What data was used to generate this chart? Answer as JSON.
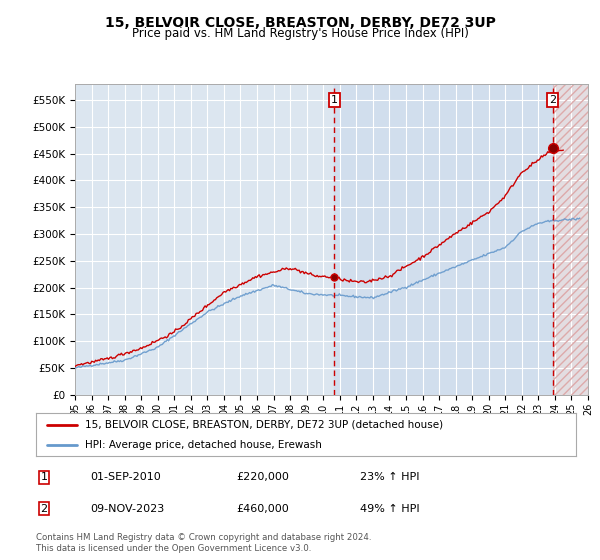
{
  "title": "15, BELVOIR CLOSE, BREASTON, DERBY, DE72 3UP",
  "subtitle": "Price paid vs. HM Land Registry's House Price Index (HPI)",
  "ylim": [
    0,
    580000
  ],
  "yticks": [
    0,
    50000,
    100000,
    150000,
    200000,
    250000,
    300000,
    350000,
    400000,
    450000,
    500000,
    550000
  ],
  "ytick_labels": [
    "£0",
    "£50K",
    "£100K",
    "£150K",
    "£200K",
    "£250K",
    "£300K",
    "£350K",
    "£400K",
    "£450K",
    "£500K",
    "£550K"
  ],
  "x_start_year": 1995,
  "x_end_year": 2026,
  "xtick_years": [
    1995,
    1996,
    1997,
    1998,
    1999,
    2000,
    2001,
    2002,
    2003,
    2004,
    2005,
    2006,
    2007,
    2008,
    2009,
    2010,
    2011,
    2012,
    2013,
    2014,
    2015,
    2016,
    2017,
    2018,
    2019,
    2020,
    2021,
    2022,
    2023,
    2024,
    2025,
    2026
  ],
  "xtick_labels": [
    "95",
    "96",
    "97",
    "98",
    "99",
    "00",
    "01",
    "02",
    "03",
    "04",
    "05",
    "06",
    "07",
    "08",
    "09",
    "10",
    "11",
    "12",
    "13",
    "14",
    "15",
    "16",
    "17",
    "18",
    "19",
    "20",
    "21",
    "22",
    "23",
    "24",
    "25",
    "26"
  ],
  "transaction1_x": 2010.67,
  "transaction1_y": 220000,
  "transaction1_label": "1",
  "transaction1_date": "01-SEP-2010",
  "transaction1_price": "£220,000",
  "transaction1_hpi": "23% ↑ HPI",
  "transaction2_x": 2023.86,
  "transaction2_y": 460000,
  "transaction2_label": "2",
  "transaction2_date": "09-NOV-2023",
  "transaction2_price": "£460,000",
  "transaction2_hpi": "49% ↑ HPI",
  "legend_line1": "15, BELVOIR CLOSE, BREASTON, DERBY, DE72 3UP (detached house)",
  "legend_line2": "HPI: Average price, detached house, Erewash",
  "footer": "Contains HM Land Registry data © Crown copyright and database right 2024.\nThis data is licensed under the Open Government Licence v3.0.",
  "line1_color": "#cc0000",
  "line2_color": "#6699cc",
  "bg_color": "#dce6f0",
  "grid_color": "#ffffff",
  "hatch_bg_color": "#e8d8d8"
}
